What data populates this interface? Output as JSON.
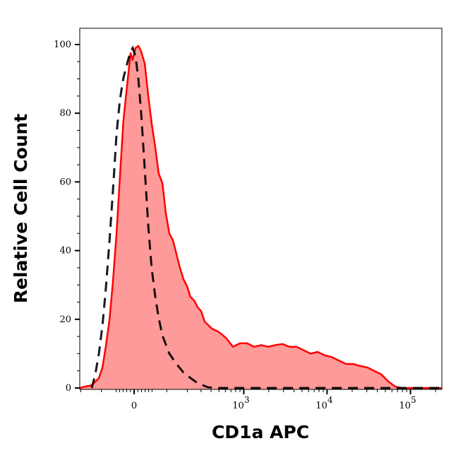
{
  "chart_data": {
    "type": "area",
    "xlabel": "CD1a APC",
    "ylabel": "Relative Cell Count",
    "x_scale": "biexponential",
    "xlim": [
      -206,
      238000
    ],
    "ylim": [
      0,
      105
    ],
    "grid": false,
    "x_ticks": [
      {
        "value": 0,
        "base": "0",
        "exp": ""
      },
      {
        "value": 1000,
        "base": "10",
        "exp": "3"
      },
      {
        "value": 10000,
        "base": "10",
        "exp": "4"
      },
      {
        "value": 100000,
        "base": "10",
        "exp": "5"
      }
    ],
    "y_ticks": [
      0,
      20,
      40,
      60,
      80,
      100
    ],
    "y_tick_labels": [
      "0",
      "20",
      "40",
      "60",
      "80",
      "100"
    ],
    "series": [
      {
        "style": "filled-solid",
        "color": "#ff0000",
        "fill": "#ff9a9a",
        "points": [
          [
            -206,
            0
          ],
          [
            -177,
            0.4
          ],
          [
            -141,
            0.8
          ],
          [
            -110,
            2.9
          ],
          [
            -96,
            6
          ],
          [
            -84,
            12
          ],
          [
            -71,
            20
          ],
          [
            -60,
            31
          ],
          [
            -49,
            45
          ],
          [
            -39,
            61.5
          ],
          [
            -29,
            78
          ],
          [
            -19,
            88
          ],
          [
            -9.4,
            97.5
          ],
          [
            -3.8,
            95.5
          ],
          [
            3.8,
            99
          ],
          [
            11.4,
            99.6
          ],
          [
            19,
            98
          ],
          [
            29,
            94.4
          ],
          [
            39,
            85
          ],
          [
            49,
            77
          ],
          [
            60,
            70
          ],
          [
            71,
            62.5
          ],
          [
            84,
            59.5
          ],
          [
            96,
            51
          ],
          [
            110,
            45
          ],
          [
            125,
            43
          ],
          [
            141,
            39
          ],
          [
            158,
            35
          ],
          [
            177,
            31.7
          ],
          [
            198,
            29.6
          ],
          [
            220,
            26.5
          ],
          [
            245,
            25.5
          ],
          [
            272,
            23.5
          ],
          [
            301,
            22.4
          ],
          [
            334,
            19.3
          ],
          [
            408,
            17.3
          ],
          [
            498,
            16.3
          ],
          [
            607,
            14.6
          ],
          [
            740,
            12
          ],
          [
            900,
            13
          ],
          [
            1095,
            13
          ],
          [
            1334,
            12
          ],
          [
            1620,
            12.5
          ],
          [
            1969,
            12
          ],
          [
            2391,
            12.5
          ],
          [
            2910,
            12.8
          ],
          [
            3531,
            12
          ],
          [
            4292,
            12
          ],
          [
            5219,
            11
          ],
          [
            6339,
            10
          ],
          [
            7707,
            10.5
          ],
          [
            9365,
            9.5
          ],
          [
            11380,
            9
          ],
          [
            13830,
            8
          ],
          [
            16800,
            7
          ],
          [
            20420,
            7
          ],
          [
            24820,
            6.4
          ],
          [
            30160,
            6
          ],
          [
            36660,
            5
          ],
          [
            44540,
            4
          ],
          [
            54130,
            1.9
          ],
          [
            65770,
            0.4
          ],
          [
            79930,
            0
          ],
          [
            238100,
            0
          ]
        ]
      },
      {
        "style": "dashed",
        "color": "#000000",
        "points": [
          [
            -141,
            0
          ],
          [
            -125,
            4
          ],
          [
            -110,
            10
          ],
          [
            -96,
            18.3
          ],
          [
            -84,
            28.6
          ],
          [
            -71,
            43
          ],
          [
            -60,
            57.4
          ],
          [
            -49,
            74
          ],
          [
            -39,
            84
          ],
          [
            -29,
            90.3
          ],
          [
            -19,
            94.4
          ],
          [
            -9.4,
            98
          ],
          [
            -3.8,
            99
          ],
          [
            3.8,
            96.5
          ],
          [
            11.4,
            90
          ],
          [
            19,
            80
          ],
          [
            29,
            63.6
          ],
          [
            39,
            47
          ],
          [
            49,
            34.8
          ],
          [
            60,
            26.5
          ],
          [
            71,
            20.4
          ],
          [
            84,
            15.2
          ],
          [
            110,
            10
          ],
          [
            141,
            7
          ],
          [
            177,
            4.5
          ],
          [
            220,
            2.9
          ],
          [
            272,
            1.4
          ],
          [
            366,
            0.2
          ],
          [
            498,
            0
          ],
          [
            238100,
            0
          ]
        ]
      }
    ]
  }
}
